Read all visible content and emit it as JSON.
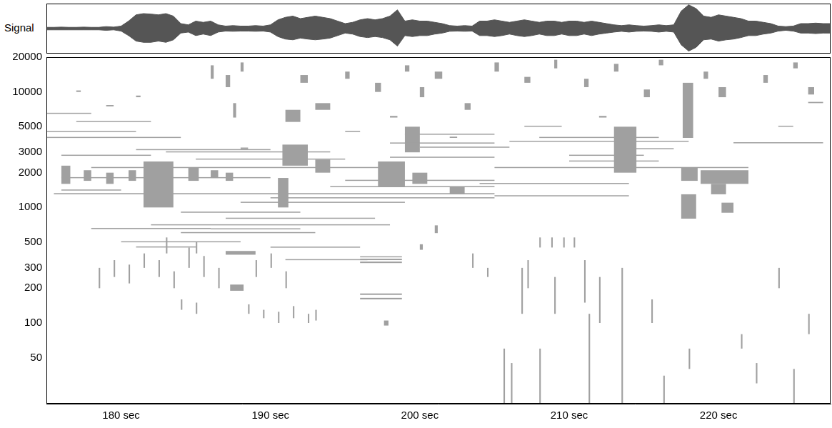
{
  "chart_data": [
    {
      "type": "line",
      "ylabel": "Signal",
      "color": "#555555",
      "tick_labels": false,
      "grid": false,
      "xlim": [
        175,
        227.5
      ],
      "ylim": [
        -1,
        1
      ],
      "x": [
        175,
        175.5,
        176,
        176.5,
        177,
        177.5,
        178,
        178.5,
        179,
        179.5,
        180,
        180.5,
        181,
        181.5,
        182,
        182.5,
        183,
        183.5,
        184,
        184.5,
        185,
        185.5,
        186,
        186.5,
        187,
        187.5,
        188,
        188.5,
        189,
        189.5,
        190,
        190.5,
        191,
        191.5,
        192,
        192.5,
        193,
        193.5,
        194,
        194.5,
        195,
        195.5,
        196,
        196.5,
        197,
        197.5,
        198,
        198.5,
        199,
        199.5,
        200,
        200.5,
        201,
        201.5,
        202,
        202.5,
        203,
        203.5,
        204,
        204.5,
        205,
        205.5,
        206,
        206.5,
        207,
        207.5,
        208,
        208.5,
        209,
        209.5,
        210,
        210.5,
        211,
        211.5,
        212,
        212.5,
        213,
        213.5,
        214,
        214.5,
        215,
        215.5,
        216,
        216.5,
        217,
        217.5,
        218,
        218.5,
        219,
        219.5,
        220,
        220.5,
        221,
        221.5,
        222,
        222.5,
        223,
        223.5,
        224,
        224.5,
        225,
        225.5,
        226,
        226.5,
        227,
        227.5
      ],
      "upper": [
        0.05,
        0.05,
        0.06,
        0.05,
        0.05,
        0.06,
        0.05,
        0.05,
        0.08,
        0.06,
        0.1,
        0.3,
        0.55,
        0.6,
        0.58,
        0.55,
        0.6,
        0.5,
        0.2,
        0.15,
        0.3,
        0.25,
        0.3,
        0.15,
        0.1,
        0.12,
        0.1,
        0.1,
        0.12,
        0.1,
        0.15,
        0.35,
        0.45,
        0.5,
        0.4,
        0.45,
        0.5,
        0.45,
        0.4,
        0.3,
        0.2,
        0.25,
        0.35,
        0.4,
        0.35,
        0.4,
        0.5,
        0.75,
        0.3,
        0.35,
        0.3,
        0.3,
        0.25,
        0.2,
        0.12,
        0.1,
        0.12,
        0.1,
        0.3,
        0.3,
        0.35,
        0.3,
        0.25,
        0.3,
        0.35,
        0.3,
        0.25,
        0.3,
        0.3,
        0.25,
        0.3,
        0.3,
        0.25,
        0.3,
        0.25,
        0.2,
        0.15,
        0.12,
        0.15,
        0.12,
        0.1,
        0.12,
        0.15,
        0.12,
        0.15,
        0.7,
        0.95,
        0.8,
        0.5,
        0.45,
        0.55,
        0.5,
        0.45,
        0.4,
        0.3,
        0.3,
        0.25,
        0.2,
        0.1,
        0.08,
        0.1,
        0.2,
        0.2,
        0.22,
        0.2,
        0.2
      ],
      "lower": [
        -0.05,
        -0.05,
        -0.05,
        -0.05,
        -0.05,
        -0.05,
        -0.05,
        -0.05,
        -0.07,
        -0.05,
        -0.1,
        -0.28,
        -0.5,
        -0.55,
        -0.55,
        -0.5,
        -0.55,
        -0.45,
        -0.18,
        -0.14,
        -0.28,
        -0.22,
        -0.28,
        -0.14,
        -0.1,
        -0.11,
        -0.1,
        -0.1,
        -0.11,
        -0.1,
        -0.14,
        -0.32,
        -0.42,
        -0.45,
        -0.38,
        -0.42,
        -0.45,
        -0.42,
        -0.38,
        -0.28,
        -0.18,
        -0.22,
        -0.32,
        -0.36,
        -0.32,
        -0.36,
        -0.45,
        -0.7,
        -0.28,
        -0.32,
        -0.28,
        -0.28,
        -0.22,
        -0.18,
        -0.11,
        -0.1,
        -0.11,
        -0.1,
        -0.28,
        -0.28,
        -0.32,
        -0.28,
        -0.22,
        -0.28,
        -0.32,
        -0.28,
        -0.22,
        -0.28,
        -0.28,
        -0.22,
        -0.28,
        -0.28,
        -0.22,
        -0.28,
        -0.22,
        -0.18,
        -0.14,
        -0.11,
        -0.14,
        -0.11,
        -0.1,
        -0.11,
        -0.14,
        -0.11,
        -0.14,
        -0.65,
        -0.9,
        -0.75,
        -0.45,
        -0.42,
        -0.5,
        -0.45,
        -0.42,
        -0.36,
        -0.28,
        -0.28,
        -0.22,
        -0.18,
        -0.1,
        -0.07,
        -0.1,
        -0.18,
        -0.18,
        -0.2,
        -0.18,
        -0.18
      ]
    },
    {
      "type": "spectrogram",
      "log": "y",
      "grid": false,
      "color": "#a0a0a0",
      "xlim": [
        175,
        227.5
      ],
      "ylim": [
        20,
        20000
      ],
      "xticks": [
        {
          "value": 180,
          "label": "180 sec"
        },
        {
          "value": 190,
          "label": "190 sec"
        },
        {
          "value": 200,
          "label": "200 sec"
        },
        {
          "value": 210,
          "label": "210 sec"
        },
        {
          "value": 220,
          "label": "220 sec"
        }
      ],
      "yticks": [
        50,
        100,
        200,
        300,
        500,
        1000,
        2000,
        3000,
        5000,
        10000,
        20000
      ],
      "cells": [
        [
          175.5,
          205,
          1300,
          1330
        ],
        [
          176,
          190,
          1800,
          1830
        ],
        [
          178,
          198,
          2200,
          2240
        ],
        [
          183,
          194,
          3000,
          3060
        ],
        [
          181,
          190,
          3150,
          3200
        ],
        [
          175,
          184,
          4000,
          4080
        ],
        [
          175,
          178,
          6500,
          6600
        ],
        [
          182,
          198,
          700,
          715
        ],
        [
          187,
          197,
          800,
          815
        ],
        [
          184,
          193,
          600,
          612
        ],
        [
          180,
          188,
          500,
          510
        ],
        [
          194,
          205,
          1500,
          1530
        ],
        [
          190,
          205,
          1200,
          1225
        ],
        [
          204,
          214,
          1600,
          1630
        ],
        [
          205,
          214,
          1250,
          1275
        ],
        [
          206,
          218,
          3700,
          3780
        ],
        [
          208,
          216,
          4000,
          4080
        ],
        [
          207,
          209.5,
          5000,
          5100
        ],
        [
          210,
          216,
          2500,
          2550
        ],
        [
          205,
          222,
          2200,
          2240
        ],
        [
          176,
          180,
          1400,
          1430
        ],
        [
          175,
          181,
          4500,
          4590
        ],
        [
          177,
          182,
          5500,
          5610
        ],
        [
          185,
          195,
          2600,
          2650
        ],
        [
          188,
          199,
          1100,
          1120
        ],
        [
          195,
          205,
          1700,
          1735
        ],
        [
          200,
          206,
          3300,
          3360
        ],
        [
          210,
          215,
          2800,
          2860
        ],
        [
          214,
          217,
          3200,
          3260
        ],
        [
          221,
          227,
          3600,
          3670
        ],
        [
          176,
          182,
          2800,
          2860
        ],
        [
          184,
          192,
          900,
          920
        ],
        [
          178,
          186,
          650,
          665
        ],
        [
          181,
          185,
          450,
          460
        ],
        [
          196,
          198.8,
          330,
          340
        ],
        [
          196,
          198.8,
          350,
          360
        ],
        [
          196,
          198.8,
          370,
          378
        ],
        [
          196,
          198.8,
          160,
          165
        ],
        [
          196,
          198.8,
          175,
          180
        ],
        [
          187,
          189,
          390,
          420
        ],
        [
          187.3,
          188.2,
          190,
          215
        ],
        [
          191,
          196.5,
          350,
          357
        ],
        [
          186,
          192,
          650,
          660
        ],
        [
          190,
          196,
          450,
          458
        ],
        [
          181.5,
          183.5,
          1000,
          2500
        ],
        [
          176,
          176.6,
          1600,
          2300
        ],
        [
          177.5,
          178,
          1700,
          2100
        ],
        [
          179,
          179.5,
          1600,
          2000
        ],
        [
          180.5,
          181,
          1700,
          2100
        ],
        [
          184.5,
          185.2,
          1700,
          2200
        ],
        [
          186,
          186.5,
          1800,
          2100
        ],
        [
          187,
          187.5,
          1700,
          2000
        ],
        [
          190.8,
          192.5,
          2300,
          3500
        ],
        [
          190.5,
          191.2,
          1000,
          1800
        ],
        [
          193,
          194,
          2000,
          2600
        ],
        [
          197.2,
          199,
          1500,
          2500
        ],
        [
          199.5,
          200.5,
          1600,
          2000
        ],
        [
          217.5,
          218.5,
          800,
          1300
        ],
        [
          217.5,
          218.6,
          1700,
          2200
        ],
        [
          217.6,
          218.3,
          4000,
          12000
        ],
        [
          218.8,
          222,
          1600,
          2100
        ],
        [
          219.5,
          220.5,
          1300,
          1600
        ],
        [
          220.2,
          221,
          900,
          1100
        ],
        [
          213,
          214.5,
          2000,
          5000
        ],
        [
          191,
          192,
          5500,
          7000
        ],
        [
          193,
          194,
          7000,
          8000
        ],
        [
          199,
          200,
          3000,
          5000
        ],
        [
          202,
          203,
          1300,
          1500
        ],
        [
          178.5,
          178.6,
          200,
          300
        ],
        [
          179.5,
          179.6,
          250,
          350
        ],
        [
          180.5,
          180.6,
          220,
          320
        ],
        [
          181.5,
          181.6,
          300,
          400
        ],
        [
          182.5,
          182.6,
          250,
          350
        ],
        [
          183.5,
          183.6,
          200,
          280
        ],
        [
          184.5,
          184.6,
          300,
          450
        ],
        [
          185.5,
          185.6,
          250,
          380
        ],
        [
          186.5,
          186.6,
          200,
          300
        ],
        [
          183,
          183.1,
          400,
          550
        ],
        [
          185,
          185.1,
          400,
          500
        ],
        [
          189,
          189.1,
          250,
          350
        ],
        [
          190,
          190.1,
          300,
          400
        ],
        [
          191,
          191.1,
          200,
          280
        ],
        [
          189.5,
          189.6,
          110,
          130
        ],
        [
          190.5,
          190.6,
          100,
          125
        ],
        [
          191.5,
          191.6,
          110,
          140
        ],
        [
          192.5,
          192.6,
          100,
          120
        ],
        [
          188.5,
          188.6,
          120,
          145
        ],
        [
          193,
          193.1,
          105,
          130
        ],
        [
          184,
          184.1,
          130,
          160
        ],
        [
          185,
          185.1,
          120,
          150
        ],
        [
          205.6,
          205.7,
          20,
          60
        ],
        [
          206.1,
          206.2,
          20,
          45
        ],
        [
          208,
          208.1,
          20,
          60
        ],
        [
          211.3,
          211.4,
          20,
          120
        ],
        [
          213.5,
          213.6,
          20,
          300
        ],
        [
          216.3,
          216.4,
          20,
          35
        ],
        [
          206.8,
          206.9,
          120,
          300
        ],
        [
          207.2,
          207.3,
          200,
          350
        ],
        [
          209,
          209.1,
          120,
          250
        ],
        [
          211,
          211.1,
          150,
          350
        ],
        [
          212,
          212.1,
          100,
          250
        ],
        [
          215.5,
          215.6,
          100,
          160
        ],
        [
          222.5,
          222.6,
          30,
          45
        ],
        [
          225,
          225.1,
          20,
          40
        ],
        [
          226,
          226.1,
          80,
          120
        ],
        [
          208,
          208.1,
          450,
          550
        ],
        [
          208.8,
          208.9,
          450,
          550
        ],
        [
          209.6,
          209.7,
          450,
          550
        ],
        [
          210.3,
          210.4,
          450,
          550
        ],
        [
          203.5,
          203.6,
          300,
          400
        ],
        [
          204.5,
          204.6,
          250,
          300
        ],
        [
          218,
          218.1,
          40,
          60
        ],
        [
          221.5,
          221.6,
          60,
          80
        ],
        [
          200,
          200.2,
          430,
          480
        ],
        [
          201,
          201.2,
          600,
          700
        ],
        [
          224,
          224.1,
          200,
          300
        ],
        [
          197.6,
          197.9,
          95,
          105
        ],
        [
          186,
          186.2,
          13000,
          17000
        ],
        [
          187,
          187.3,
          11000,
          14000
        ],
        [
          188,
          188.2,
          15000,
          18000
        ],
        [
          187.5,
          187.7,
          6000,
          8000
        ],
        [
          192,
          192.5,
          12000,
          14000
        ],
        [
          195,
          195.3,
          13000,
          15000
        ],
        [
          197,
          197.4,
          10000,
          12000
        ],
        [
          199,
          199.3,
          15000,
          17000
        ],
        [
          200,
          200.3,
          9000,
          11000
        ],
        [
          201,
          201.5,
          13000,
          15000
        ],
        [
          203,
          203.4,
          7000,
          8000
        ],
        [
          205,
          205.3,
          15000,
          18000
        ],
        [
          207,
          207.4,
          12000,
          13500
        ],
        [
          209,
          209.2,
          16000,
          19000
        ],
        [
          211,
          211.3,
          11000,
          13000
        ],
        [
          213,
          213.3,
          15000,
          17500
        ],
        [
          215,
          215.4,
          9000,
          10500
        ],
        [
          216,
          216.3,
          17000,
          19000
        ],
        [
          219,
          219.3,
          13000,
          15000
        ],
        [
          220,
          220.5,
          9000,
          11000
        ],
        [
          223,
          223.3,
          12000,
          14000
        ],
        [
          225,
          225.3,
          16000,
          18000
        ],
        [
          226,
          226.4,
          9500,
          11000
        ],
        [
          188,
          188.5,
          3200,
          3300
        ],
        [
          181,
          181.3,
          9000,
          9300
        ],
        [
          177,
          177.3,
          10000,
          10300
        ],
        [
          179,
          179.5,
          7500,
          7700
        ],
        [
          195,
          196,
          4500,
          4600
        ],
        [
          198,
          198.5,
          6000,
          6200
        ],
        [
          202,
          202.5,
          4000,
          4100
        ],
        [
          212,
          212.5,
          6000,
          6200
        ],
        [
          224,
          225,
          5000,
          5100
        ],
        [
          226,
          227,
          8000,
          8200
        ],
        [
          198,
          205,
          2700,
          2750
        ],
        [
          198,
          205,
          3600,
          3650
        ],
        [
          199,
          205,
          4300,
          4350
        ]
      ]
    }
  ]
}
